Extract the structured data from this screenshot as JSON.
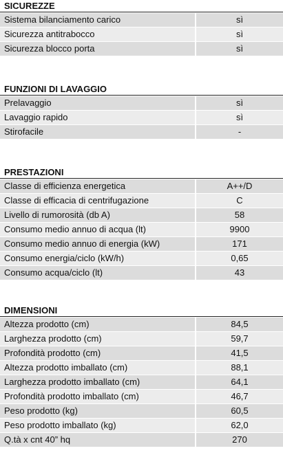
{
  "sections": [
    {
      "title": "SICUREZZE",
      "rows": [
        [
          "Sistema bilanciamento carico",
          "sì"
        ],
        [
          "Sicurezza antitrabocco",
          "sì"
        ],
        [
          "Sicurezza blocco porta",
          "sì"
        ]
      ]
    },
    {
      "title": "FUNZIONI DI LAVAGGIO",
      "rows": [
        [
          "Prelavaggio",
          "sì"
        ],
        [
          "Lavaggio rapido",
          "sì"
        ],
        [
          "Stirofacile",
          "-"
        ]
      ]
    },
    {
      "title": "PRESTAZIONI",
      "rows": [
        [
          "Classe di efficienza energetica",
          "A++/D"
        ],
        [
          "Classe di efficacia di centrifugazione",
          "C"
        ],
        [
          "Livello di rumorosità (db A)",
          "58"
        ],
        [
          "Consumo medio annuo di acqua (lt)",
          "9900"
        ],
        [
          "Consumo medio annuo di energia (kW)",
          "171"
        ],
        [
          "Consumo energia/ciclo (kW/h)",
          "0,65"
        ],
        [
          "Consumo acqua/ciclo (lt)",
          "43"
        ]
      ]
    },
    {
      "title": "DIMENSIONI",
      "rows": [
        [
          "Altezza prodotto (cm)",
          "84,5"
        ],
        [
          "Larghezza prodotto (cm)",
          "59,7"
        ],
        [
          "Profondità prodotto (cm)",
          "41,5"
        ],
        [
          "Altezza prodotto imballato (cm)",
          "88,1"
        ],
        [
          "Larghezza prodotto imballato (cm)",
          "64,1"
        ],
        [
          "Profondità prodotto imballato (cm)",
          "46,7"
        ],
        [
          "Peso prodotto (kg)",
          "60,5"
        ],
        [
          "Peso prodotto imballato (kg)",
          "62,0"
        ],
        [
          "Q.tà x cnt 40” hq",
          "270"
        ]
      ]
    }
  ]
}
